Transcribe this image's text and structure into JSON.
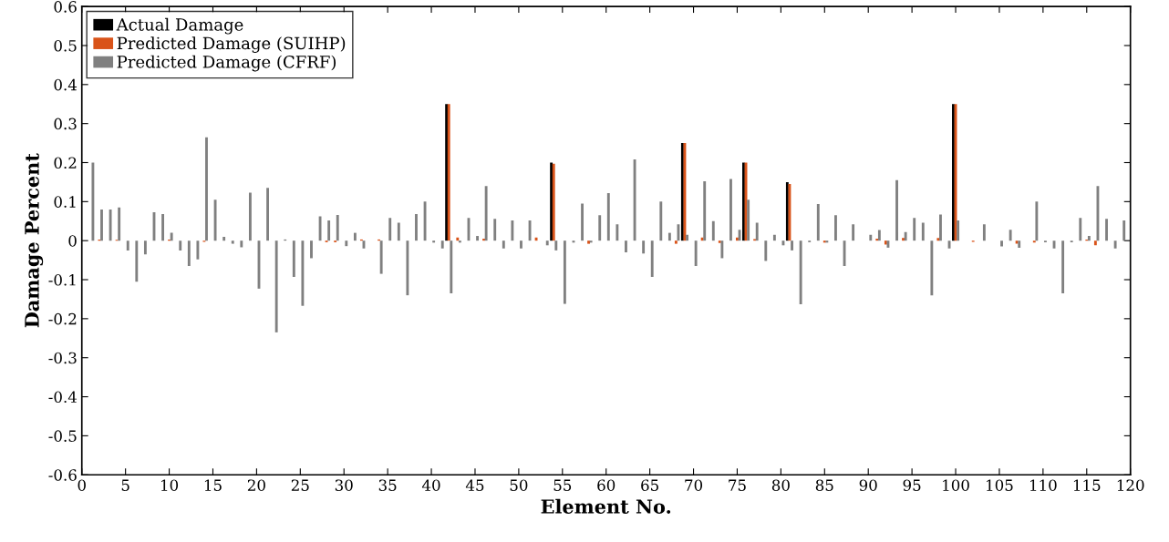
{
  "chart_data": {
    "type": "bar",
    "xlabel": "Element No.",
    "ylabel": "Damage Percent",
    "x": [
      1,
      2,
      3,
      4,
      5,
      6,
      7,
      8,
      9,
      10,
      11,
      12,
      13,
      14,
      15,
      16,
      17,
      18,
      19,
      20,
      21,
      22,
      23,
      24,
      25,
      26,
      27,
      28,
      29,
      30,
      31,
      32,
      33,
      34,
      35,
      36,
      37,
      38,
      39,
      40,
      41,
      42,
      43,
      44,
      45,
      46,
      47,
      48,
      49,
      50,
      51,
      52,
      53,
      54,
      55,
      56,
      57,
      58,
      59,
      60,
      61,
      62,
      63,
      64,
      65,
      66,
      67,
      68,
      69,
      70,
      71,
      72,
      73,
      74,
      75,
      76,
      77,
      78,
      79,
      80,
      81,
      82,
      83,
      84,
      85,
      86,
      87,
      88,
      89,
      90,
      91,
      92,
      93,
      94,
      95,
      96,
      97,
      98,
      99,
      100,
      101,
      102,
      103,
      104,
      105,
      106,
      107,
      108,
      109,
      110,
      111,
      112,
      113,
      114,
      115,
      116,
      117,
      118,
      119
    ],
    "series": [
      {
        "name": "Actual Damage",
        "color": "#000000",
        "values": [
          0,
          0,
          0,
          0,
          0,
          0,
          0,
          0,
          0,
          0,
          0,
          0,
          0,
          0,
          0,
          0,
          0,
          0,
          0,
          0,
          0,
          0,
          0,
          0,
          0,
          0,
          0,
          0,
          0,
          0,
          0,
          0,
          0,
          0,
          0,
          0,
          0,
          0,
          0,
          0,
          0,
          0.35,
          0,
          0,
          0,
          0,
          0,
          0,
          0,
          0,
          0,
          0,
          0,
          0.2,
          0,
          0,
          0,
          0,
          0,
          0,
          0,
          0,
          0,
          0,
          0,
          0,
          0,
          0,
          0.25,
          0,
          0,
          0,
          0,
          0,
          0,
          0.2,
          0,
          0,
          0,
          0,
          0.15,
          0,
          0,
          0,
          0,
          0,
          0,
          0,
          0,
          0,
          0,
          0,
          0,
          0,
          0,
          0,
          0,
          0,
          0,
          0.35,
          0,
          0,
          0,
          0,
          0,
          0,
          0,
          0,
          0,
          0,
          0,
          0,
          0,
          0,
          0,
          0,
          0,
          0,
          0
        ]
      },
      {
        "name": "Predicted Damage (SUIHP)",
        "color": "#d95319",
        "values": [
          0,
          0.003,
          0,
          0.002,
          0,
          null,
          0,
          0,
          null,
          0.003,
          0,
          0,
          0,
          -0.003,
          0,
          0,
          0,
          0,
          0,
          0,
          0,
          0,
          0,
          0,
          0,
          0,
          0,
          -0.004,
          -0.004,
          0,
          0,
          0.003,
          0,
          0.003,
          0,
          0,
          0,
          0,
          0,
          0,
          0,
          0.35,
          0.008,
          0,
          0,
          0.005,
          0,
          0,
          0,
          0,
          0,
          0.008,
          0,
          0.197,
          0,
          0,
          0,
          -0.008,
          0,
          0,
          0,
          0,
          0,
          0,
          0,
          0,
          0,
          -0.008,
          0.25,
          0,
          0.008,
          0,
          -0.006,
          0,
          0.008,
          0.2,
          0.004,
          0,
          0,
          0,
          0.145,
          0,
          0,
          0,
          -0.005,
          0,
          0,
          0,
          0,
          0,
          0.005,
          -0.01,
          0,
          0.007,
          0,
          0,
          0,
          0.007,
          0,
          0.35,
          0,
          -0.003,
          0,
          0,
          null,
          0,
          -0.008,
          0,
          -0.005,
          0,
          0,
          0,
          0,
          0,
          0.003,
          -0.012,
          0,
          0,
          0
        ]
      },
      {
        "name": "Predicted Damage (CFRF)",
        "color": "#808080",
        "values": [
          0.2,
          0.08,
          0.08,
          0.085,
          -0.025,
          -0.105,
          -0.035,
          0.073,
          0.068,
          0.02,
          -0.025,
          -0.065,
          -0.048,
          0.265,
          0.105,
          0.01,
          -0.008,
          -0.017,
          0.123,
          -0.123,
          0.135,
          -0.235,
          0.003,
          -0.093,
          -0.167,
          -0.045,
          0.062,
          0.052,
          0.066,
          -0.014,
          0.02,
          -0.02,
          0,
          -0.085,
          0.058,
          0.046,
          -0.14,
          0.068,
          0.1,
          -0.005,
          -0.02,
          -0.135,
          -0.005,
          0.058,
          0.012,
          0.14,
          0.056,
          -0.02,
          0.052,
          -0.02,
          0.052,
          0,
          -0.012,
          -0.025,
          -0.162,
          -0.005,
          0.095,
          -0.005,
          0.065,
          0.122,
          0.042,
          -0.03,
          0.208,
          -0.033,
          -0.093,
          0.1,
          0.02,
          0.042,
          0.015,
          -0.065,
          0.152,
          0.05,
          -0.045,
          0.158,
          0.028,
          0.105,
          0.046,
          -0.052,
          0.015,
          -0.012,
          -0.025,
          -0.163,
          -0.004,
          0.094,
          -0.005,
          0.065,
          -0.065,
          0.042,
          0,
          0.015,
          0.027,
          -0.018,
          0.155,
          0.022,
          0.058,
          0.046,
          -0.14,
          0.067,
          -0.02,
          0.052,
          0,
          0,
          0.042,
          0,
          -0.015,
          0.028,
          -0.018,
          0,
          0.1,
          -0.004,
          -0.02,
          -0.135,
          -0.004,
          0.058,
          0.012,
          0.14,
          0.056,
          -0.02,
          0.052
        ]
      }
    ],
    "xlim": [
      0,
      120
    ],
    "xticks": [
      0,
      5,
      10,
      15,
      20,
      25,
      30,
      35,
      40,
      45,
      50,
      55,
      60,
      65,
      70,
      75,
      80,
      85,
      90,
      95,
      100,
      105,
      110,
      115,
      120
    ],
    "ylim": [
      -0.6,
      0.6
    ],
    "yticks": [
      -0.6,
      -0.5,
      -0.4,
      -0.3,
      -0.2,
      -0.1,
      0,
      0.1,
      0.2,
      0.3,
      0.4,
      0.5,
      0.6
    ],
    "grid": false,
    "legend": "top left"
  }
}
